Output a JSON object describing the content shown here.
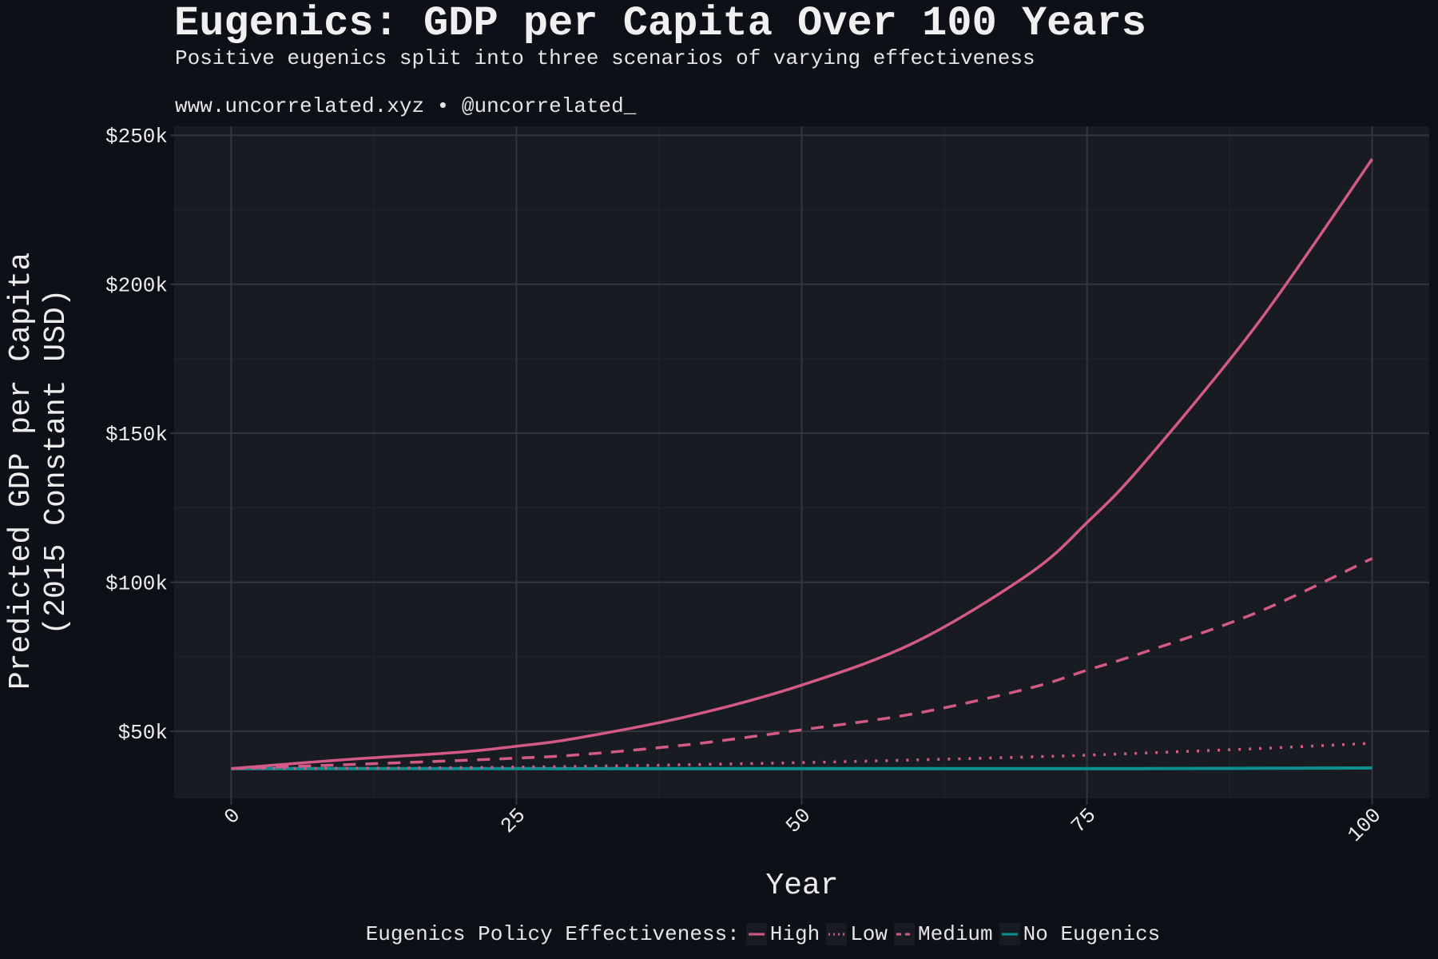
{
  "title": "Eugenics: GDP per Capita Over 100 Years",
  "subtitle": "Positive eugenics split into three scenarios of varying effectiveness",
  "caption": "www.uncorrelated.xyz • @uncorrelated_",
  "colors": {
    "background": "#0d1017",
    "panel": "#181b21",
    "grid": "#33363d",
    "eugenics": "#d45a86",
    "none": "#0e8f8f"
  },
  "chart_data": {
    "type": "line",
    "xlabel": "Year",
    "ylabel": "Predicted GDP per Capita\n(2015 Constant USD)",
    "ylabel_lines": [
      "Predicted GDP per Capita",
      "(2015 Constant USD)"
    ],
    "xlim": [
      -5,
      105
    ],
    "ylim": [
      27500,
      253000
    ],
    "x_ticks": [
      0,
      25,
      50,
      75,
      100
    ],
    "x_tick_labels": [
      "0",
      "25",
      "50",
      "75",
      "100"
    ],
    "y_ticks": [
      50000,
      100000,
      150000,
      200000,
      250000
    ],
    "y_tick_labels": [
      "$50k",
      "$100k",
      "$150k",
      "$200k",
      "$250k"
    ],
    "grid": true,
    "legend": {
      "title": "Eugenics Policy Effectiveness:",
      "placement": "bottom"
    },
    "x": [
      0,
      10,
      20,
      25,
      30,
      40,
      50,
      60,
      70,
      75,
      80,
      90,
      100
    ],
    "series": [
      {
        "name": "High",
        "linetype": "solid",
        "color": "#d45a86",
        "values": [
          37500,
          40500,
          43000,
          45000,
          47500,
          55000,
          65500,
          80000,
          103000,
          120000,
          140000,
          187000,
          242000
        ]
      },
      {
        "name": "Low",
        "linetype": "dotted",
        "color": "#d45a86",
        "values": [
          37500,
          37600,
          37800,
          38000,
          38200,
          38800,
          39500,
          40400,
          41400,
          42000,
          42700,
          44200,
          46000
        ]
      },
      {
        "name": "Medium",
        "linetype": "dashed",
        "color": "#d45a86",
        "values": [
          37500,
          38800,
          40200,
          41000,
          42000,
          45500,
          50500,
          56000,
          64500,
          70500,
          76500,
          90000,
          108000
        ]
      },
      {
        "name": "No Eugenics",
        "linetype": "solid",
        "color": "#0e8f8f",
        "values": [
          37500,
          37500,
          37500,
          37500,
          37500,
          37500,
          37500,
          37500,
          37500,
          37500,
          37500,
          37600,
          37700
        ]
      }
    ]
  }
}
